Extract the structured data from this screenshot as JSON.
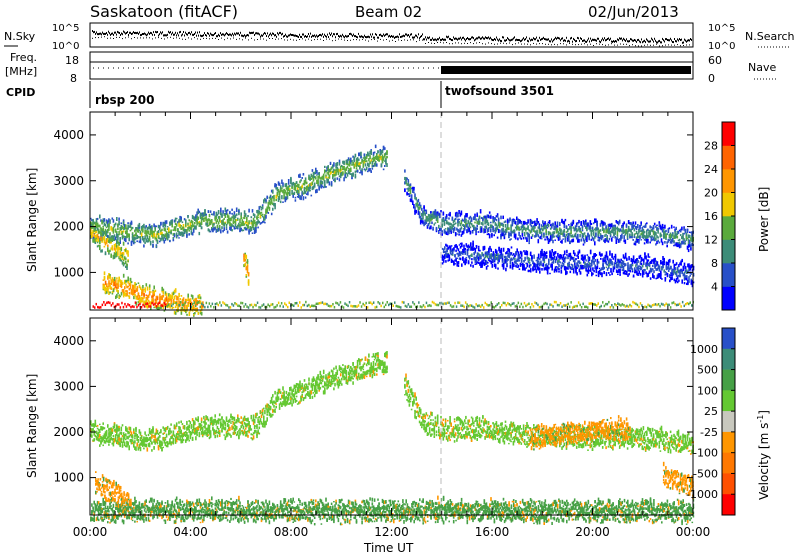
{
  "header": {
    "station": "Saskatoon (fitACF)",
    "beam": "Beam 02",
    "date": "02/Jun/2013"
  },
  "noise_panel": {
    "left_label": "N.Sky",
    "right_label": "N.Search",
    "left_ticks": [
      "10^5",
      "10^0"
    ],
    "right_ticks": [
      "10^5",
      "10^0"
    ]
  },
  "freq_panel": {
    "left_label_1": "Freq.",
    "left_label_2": "[MHz]",
    "left_ticks": [
      "18",
      "8"
    ],
    "right_label": "Nave",
    "right_ticks": [
      "60",
      "0"
    ]
  },
  "cpid_panel": {
    "label": "CPID",
    "programs": [
      {
        "name": "rbsp 200",
        "start_hour": 0
      },
      {
        "name": "twofsound 3501",
        "start_hour": 14
      }
    ]
  },
  "chart_data": [
    {
      "type": "heatmap",
      "name": "power",
      "ylabel": "Slant Range [km]",
      "x_ticks": [
        "00:00",
        "04:00",
        "08:00",
        "12:00",
        "16:00",
        "20:00",
        "00:00"
      ],
      "y_ticks": [
        "1000",
        "2000",
        "3000",
        "4000"
      ],
      "x_range_hours": [
        0,
        24
      ],
      "y_range_km": [
        180,
        4500
      ],
      "colorbar": {
        "title": "Power [dB]",
        "ticks": [
          "4",
          "8",
          "12",
          "16",
          "20",
          "24",
          "28"
        ],
        "colors": [
          "#0000ff",
          "#2850c8",
          "#3c8c78",
          "#5aaa3c",
          "#f0c800",
          "#ff9600",
          "#ff6400",
          "#ff0000"
        ]
      },
      "bands": [
        {
          "x": [
            0,
            1.5,
            2.5,
            3.5,
            4.5,
            5.5,
            6.5,
            7.5,
            8.5,
            9.5,
            10.5,
            11.3,
            11.8
          ],
          "y": [
            1950,
            1850,
            1760,
            1950,
            2080,
            2100,
            2050,
            2700,
            2850,
            3100,
            3300,
            3450,
            3500
          ],
          "level": 16
        },
        {
          "x": [
            0,
            0.6,
            1.5
          ],
          "y": [
            1850,
            1600,
            1300
          ],
          "level": 20
        },
        {
          "x": [
            0.5,
            1.5,
            2.5,
            3.5,
            4.5
          ],
          "y": [
            750,
            600,
            400,
            300,
            250
          ],
          "level": 24
        },
        {
          "x": [
            6.1,
            6.3
          ],
          "y": [
            1300,
            900
          ],
          "level": 24
        },
        {
          "x": [
            12.5,
            13.2,
            14.2,
            15.5,
            17,
            18.5,
            20,
            21.5,
            22.5,
            24
          ],
          "y": [
            3000,
            2200,
            2000,
            2050,
            1900,
            1850,
            1850,
            1850,
            1800,
            1700
          ],
          "level": 12
        },
        {
          "x": [
            14,
            16,
            18,
            20,
            22,
            24
          ],
          "y": [
            1400,
            1300,
            1200,
            1150,
            1100,
            900
          ],
          "level": 8
        }
      ]
    },
    {
      "type": "heatmap",
      "name": "velocity",
      "ylabel": "Slant Range [km]",
      "x_ticks": [
        "00:00",
        "04:00",
        "08:00",
        "12:00",
        "16:00",
        "20:00",
        "00:00"
      ],
      "xlabel": "Time UT",
      "y_ticks": [
        "1000",
        "2000",
        "3000",
        "4000"
      ],
      "x_range_hours": [
        0,
        24
      ],
      "y_range_km": [
        180,
        4500
      ],
      "colorbar": {
        "title": "Velocity [m s",
        "title_sup": "-1",
        "title_end": "]",
        "ticks": [
          "1000",
          "500",
          "100",
          "25",
          "-25",
          "-100",
          "-500",
          "-1000"
        ],
        "colors": [
          "#2850c8",
          "#3c8c78",
          "#46a046",
          "#64c832",
          "#c8c8be",
          "#ff9600",
          "#ff7800",
          "#ff5000",
          "#ff0000"
        ]
      },
      "bands": [
        {
          "x": [
            0,
            1.5,
            2.5,
            3.5,
            4.5,
            5.5,
            6.5,
            7.5,
            8.5,
            9.5,
            10.5,
            11.3,
            11.8
          ],
          "y": [
            1950,
            1850,
            1760,
            1950,
            2080,
            2100,
            2050,
            2700,
            2850,
            3100,
            3300,
            3450,
            3500
          ],
          "level": 25
        },
        {
          "x": [
            12.5,
            13.2,
            14.2,
            15.5,
            17,
            18.5,
            20,
            21.5,
            22.5,
            24
          ],
          "y": [
            3000,
            2200,
            2000,
            2050,
            1900,
            1850,
            1850,
            1850,
            1800,
            1700
          ],
          "level": 25
        },
        {
          "x": [
            0,
            1,
            2.5,
            4,
            6,
            8,
            10,
            12,
            14,
            16,
            18,
            20,
            22,
            24
          ],
          "y": [
            220,
            230,
            240,
            250,
            240,
            230,
            220,
            230,
            240,
            230,
            220,
            240,
            230,
            220
          ],
          "level": 100
        },
        {
          "x": [
            0.2,
            0.8,
            1.6
          ],
          "y": [
            850,
            650,
            400
          ],
          "level": -100
        },
        {
          "x": [
            17.5,
            18.5,
            19.5,
            20.5,
            21.5
          ],
          "y": [
            1850,
            1900,
            1950,
            2050,
            2000
          ],
          "level": -100
        },
        {
          "x": [
            22.8,
            23.4,
            24
          ],
          "y": [
            1000,
            900,
            700
          ],
          "level": -100
        }
      ]
    }
  ]
}
